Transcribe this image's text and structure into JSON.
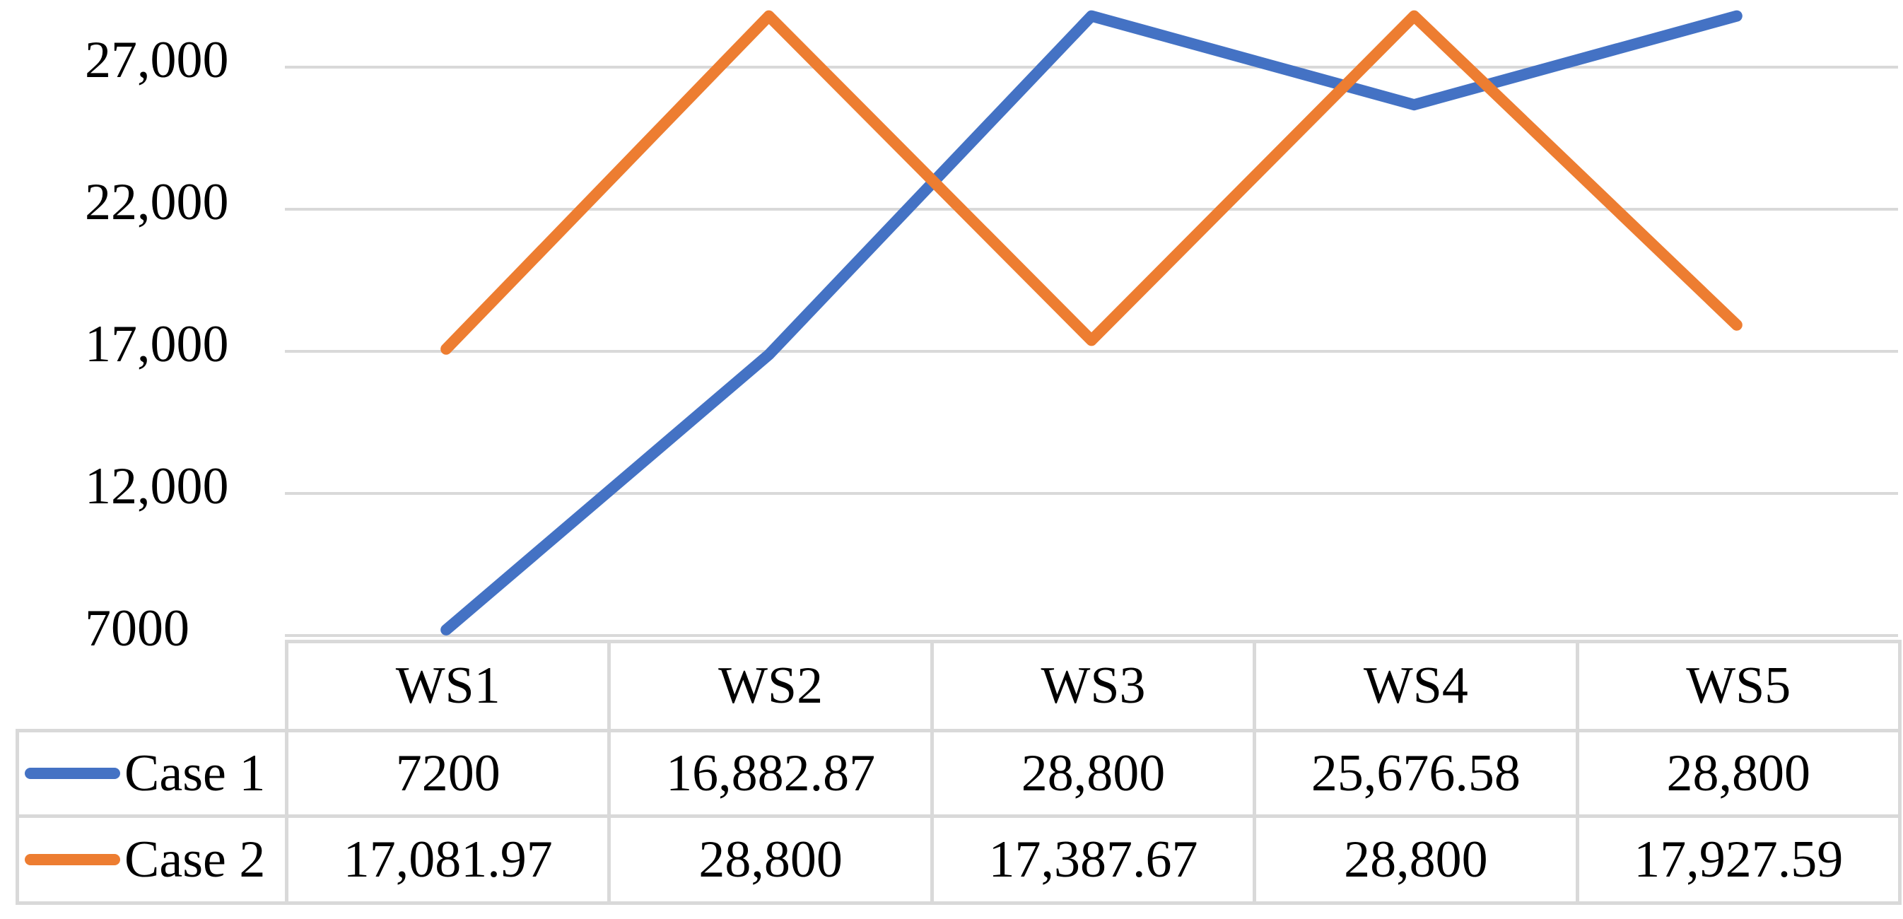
{
  "chart_data": {
    "type": "line",
    "title": "",
    "xlabel": "",
    "ylabel": "",
    "categories": [
      "WS1",
      "WS2",
      "WS3",
      "WS4",
      "WS5"
    ],
    "series": [
      {
        "name": "Case 1",
        "color": "#4472C4",
        "values": [
          7200,
          16882.87,
          28800,
          25676.58,
          28800
        ],
        "labels": [
          "7200",
          "16,882.87",
          "28,800",
          "25,676.58",
          "28,800"
        ]
      },
      {
        "name": "Case 2",
        "color": "#ED7D31",
        "values": [
          17081.97,
          28800,
          17387.67,
          28800,
          17927.59
        ],
        "labels": [
          "17,081.97",
          "28,800",
          "17,387.67",
          "28,800",
          "17,927.59"
        ]
      }
    ],
    "y_axis": {
      "min": 7000,
      "max": 29100,
      "tick_step": 5000,
      "ticks": [
        {
          "value": 27000,
          "label": "27,000"
        },
        {
          "value": 22000,
          "label": "22,000"
        },
        {
          "value": 17000,
          "label": "17,000"
        },
        {
          "value": 12000,
          "label": "12,000"
        },
        {
          "value": 7000,
          "label": "7000"
        }
      ]
    },
    "grid": "horizontal",
    "legend_position": "data-table-left",
    "data_table_shown": true
  },
  "styles": {
    "background": "#ffffff",
    "gridline_color": "#D9D9D9",
    "table_border_color": "#D9D9D9",
    "text_color": "#000000",
    "series_blue": "#4472C4",
    "series_orange": "#ED7D31"
  }
}
